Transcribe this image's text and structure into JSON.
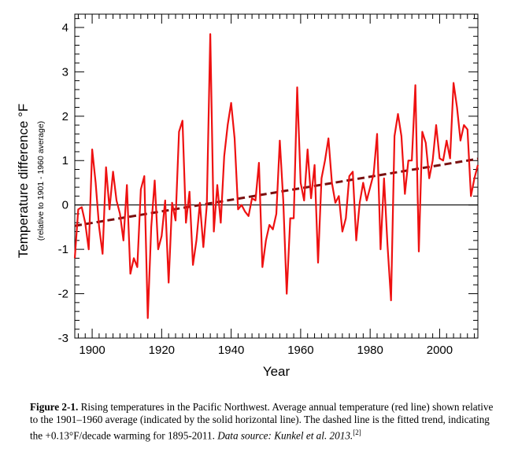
{
  "chart_data": {
    "type": "line",
    "xlabel": "Year",
    "ylabel": "Temperature difference °F",
    "ylabel_sub": "(relative to 1901 - 1960 average)",
    "xlim": [
      1895,
      2011
    ],
    "ylim": [
      -3,
      4.3
    ],
    "x_ticks": [
      1900,
      1920,
      1940,
      1960,
      1980,
      2000
    ],
    "y_ticks": [
      -3,
      -2,
      -1,
      0,
      1,
      2,
      3,
      4
    ],
    "grid": false,
    "series": [
      {
        "color": "#ee1111",
        "x": [
          1895,
          1896,
          1897,
          1898,
          1899,
          1900,
          1901,
          1902,
          1903,
          1904,
          1905,
          1906,
          1907,
          1908,
          1909,
          1910,
          1911,
          1912,
          1913,
          1914,
          1915,
          1916,
          1917,
          1918,
          1919,
          1920,
          1921,
          1922,
          1923,
          1924,
          1925,
          1926,
          1927,
          1928,
          1929,
          1930,
          1931,
          1932,
          1933,
          1934,
          1935,
          1936,
          1937,
          1938,
          1939,
          1940,
          1941,
          1942,
          1943,
          1944,
          1945,
          1946,
          1947,
          1948,
          1949,
          1950,
          1951,
          1952,
          1953,
          1954,
          1955,
          1956,
          1957,
          1958,
          1959,
          1960,
          1961,
          1962,
          1963,
          1964,
          1965,
          1966,
          1967,
          1968,
          1969,
          1970,
          1971,
          1972,
          1973,
          1974,
          1975,
          1976,
          1977,
          1978,
          1979,
          1980,
          1981,
          1982,
          1983,
          1984,
          1985,
          1986,
          1987,
          1988,
          1989,
          1990,
          1991,
          1992,
          1993,
          1994,
          1995,
          1996,
          1997,
          1998,
          1999,
          2000,
          2001,
          2002,
          2003,
          2004,
          2005,
          2006,
          2007,
          2008,
          2009,
          2010,
          2011
        ],
        "y": [
          -1.2,
          -0.1,
          -0.05,
          -0.4,
          -1.0,
          1.25,
          0.5,
          -0.5,
          -1.1,
          0.85,
          -0.1,
          0.75,
          0.1,
          -0.2,
          -0.8,
          0.45,
          -1.55,
          -1.2,
          -1.4,
          0.35,
          0.65,
          -2.55,
          -0.5,
          0.55,
          -1.0,
          -0.7,
          0.1,
          -1.75,
          0.05,
          -0.35,
          1.65,
          1.9,
          -0.4,
          0.3,
          -1.35,
          -0.8,
          0.05,
          -0.95,
          0.0,
          3.85,
          -0.6,
          0.45,
          -0.4,
          1.1,
          1.8,
          2.3,
          1.5,
          -0.1,
          0.0,
          -0.15,
          -0.25,
          0.15,
          0.1,
          0.95,
          -1.4,
          -0.8,
          -0.45,
          -0.55,
          -0.2,
          1.45,
          0.1,
          -2.0,
          -0.3,
          -0.3,
          2.65,
          0.5,
          0.1,
          1.25,
          0.15,
          0.9,
          -1.3,
          0.6,
          1.0,
          1.5,
          0.5,
          0.05,
          0.2,
          -0.6,
          -0.3,
          0.65,
          0.75,
          -0.8,
          0.05,
          0.5,
          0.1,
          0.4,
          0.7,
          1.6,
          -1.0,
          0.6,
          -0.9,
          -2.15,
          1.55,
          2.05,
          1.55,
          0.25,
          1.0,
          1.0,
          2.7,
          -1.05,
          1.65,
          1.4,
          0.6,
          1.0,
          1.8,
          1.05,
          1.0,
          1.45,
          1.05,
          2.75,
          2.2,
          1.45,
          1.8,
          1.7,
          0.2,
          0.6,
          0.9
        ]
      },
      {
        "color": "#7a1010",
        "style": "dashed",
        "x": [
          1895,
          2011
        ],
        "y": [
          -0.47,
          1.04
        ]
      },
      {
        "color": "#000000",
        "style": "solid",
        "x": [
          1895,
          2011
        ],
        "y": [
          0,
          0
        ]
      }
    ]
  },
  "caption": {
    "fig_label": "Figure 2-1.",
    "text": "Rising temperatures in the Pacific Northwest. Average annual temperature (red line) shown relative to the 1901–1960 average (indicated by the solid horizontal line). The dashed line is the fitted trend, indicating the +0.13°F/decade warming for 1895-2011.",
    "source": "Data source: Kunkel et al. 2013.",
    "ref": "[2]"
  }
}
